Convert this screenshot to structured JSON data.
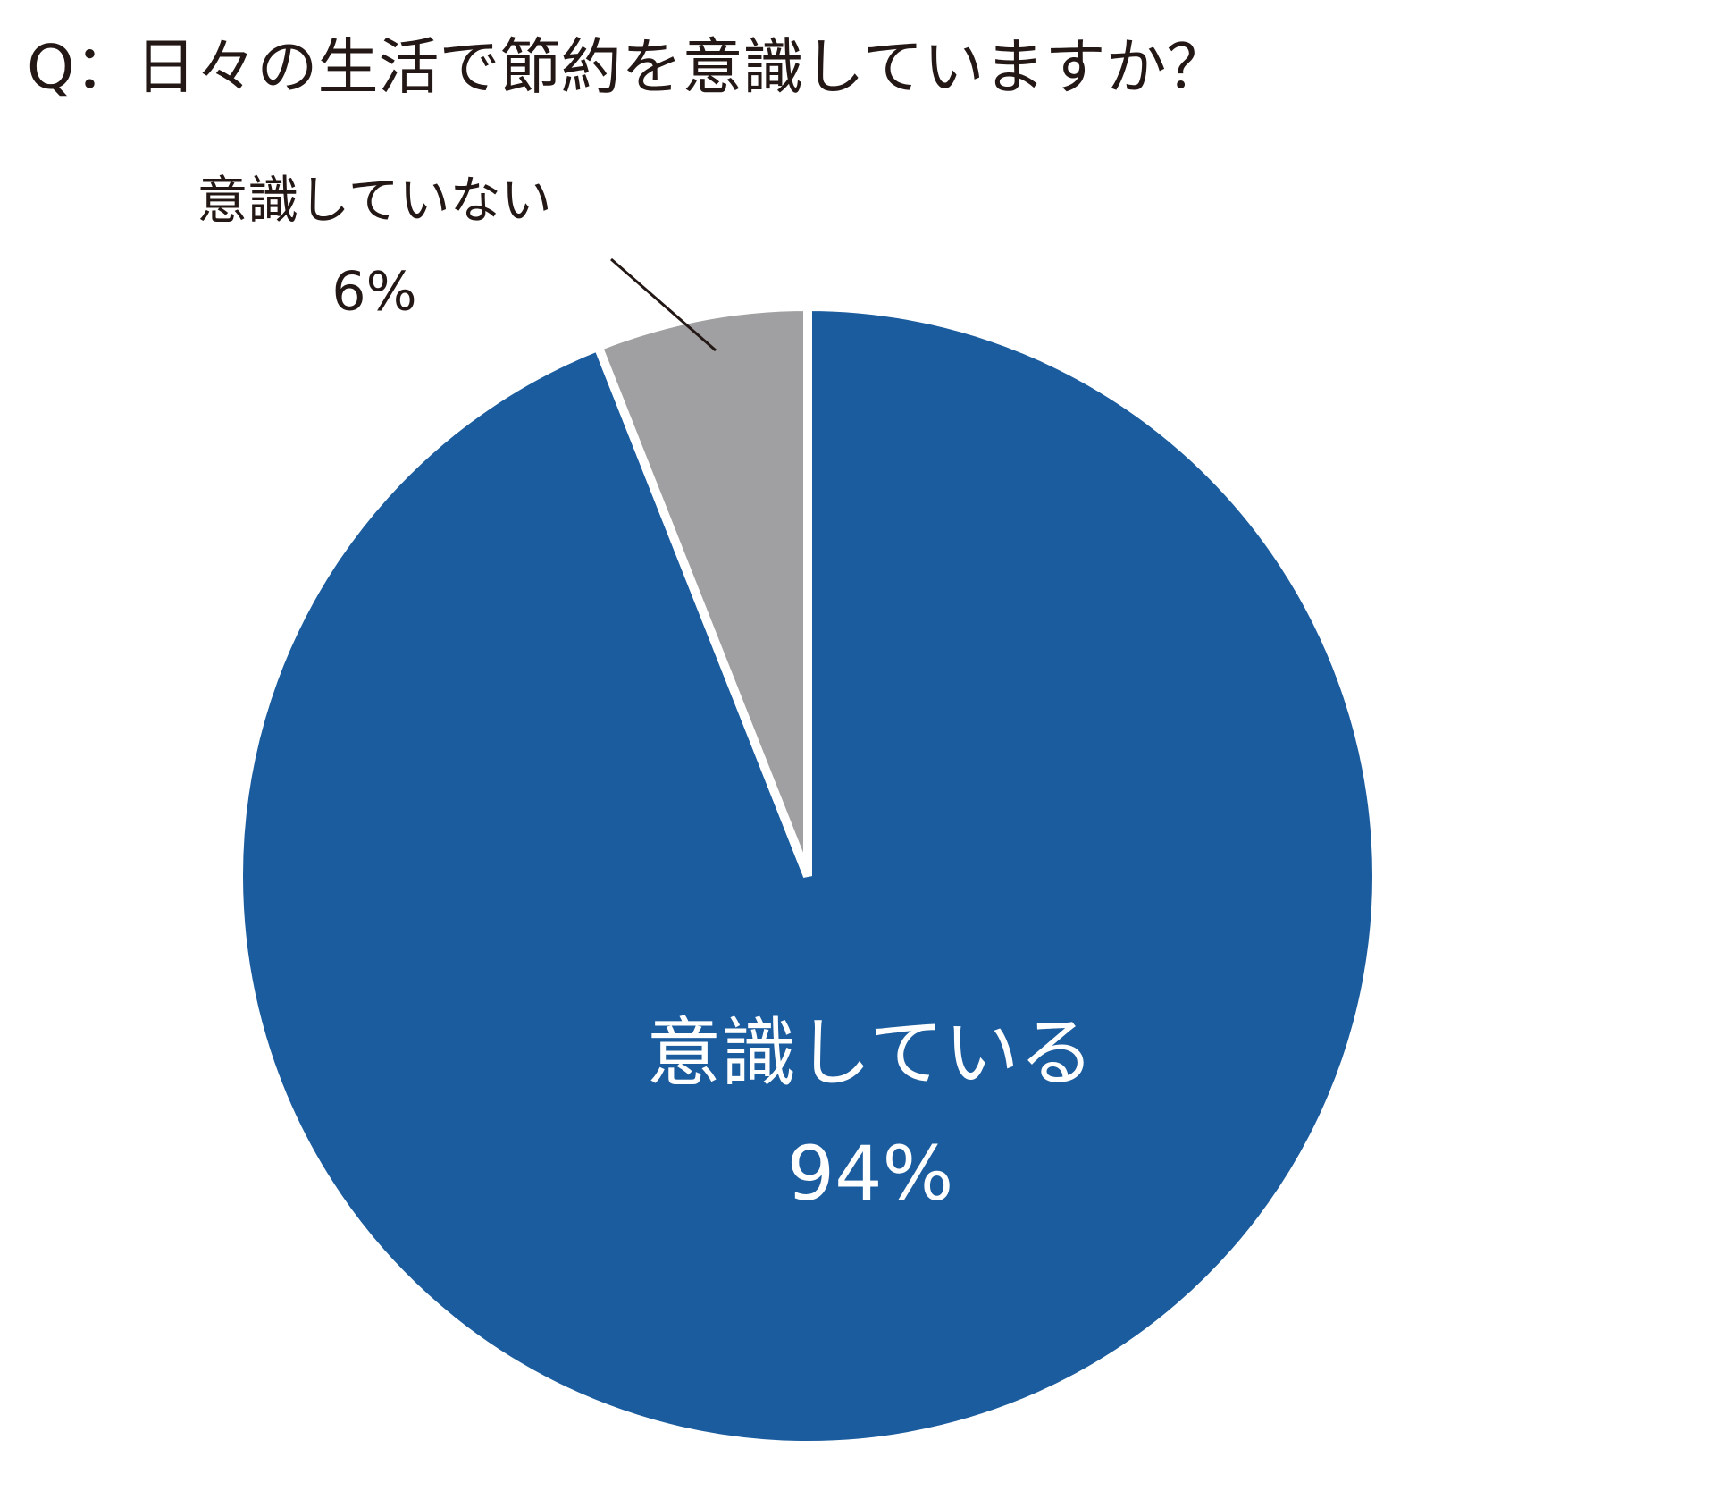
{
  "chart_data": {
    "type": "pie",
    "title": "Q：日々の生活で節約を意識していますか？",
    "categories": [
      "意識している",
      "意識していない"
    ],
    "values": [
      94,
      6
    ],
    "value_labels": [
      "94%",
      "6%"
    ],
    "colors": [
      "#1b5c9e",
      "#a0a0a2"
    ]
  }
}
